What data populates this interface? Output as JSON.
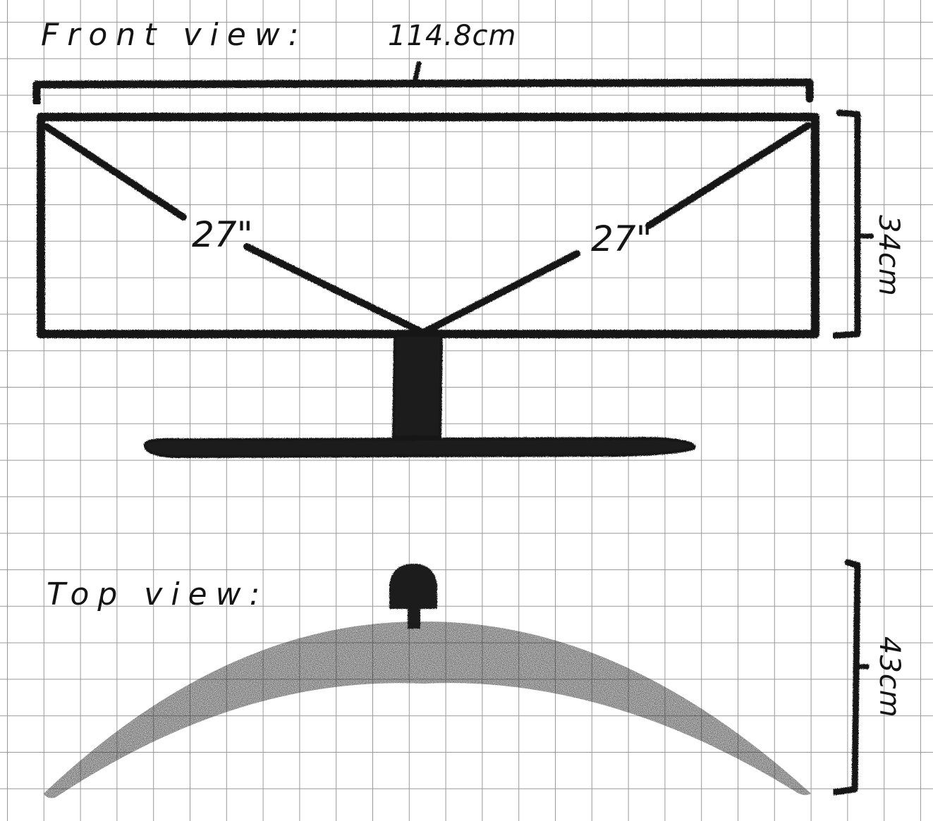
{
  "front_view": {
    "label": "Front view:",
    "width_label": "114.8cm",
    "height_label": "34cm",
    "left_diagonal_label": "27\"",
    "right_diagonal_label": "27\""
  },
  "top_view": {
    "label": "Top view:",
    "depth_label": "43cm"
  },
  "colors": {
    "ink": "#141414",
    "grid": "#9a9a9a",
    "paper": "#ffffff"
  }
}
